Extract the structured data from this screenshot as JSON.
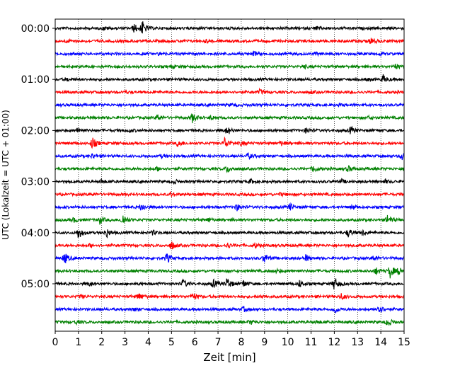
{
  "chart_data": {
    "type": "line",
    "title": "",
    "xlabel": "Zeit  [min]",
    "ylabel": "UTC (Lokalzeit = UTC + 01:00)",
    "xlim": [
      0,
      15
    ],
    "x_ticks": [
      "0",
      "1",
      "2",
      "3",
      "4",
      "5",
      "6",
      "7",
      "8",
      "9",
      "10",
      "11",
      "12",
      "13",
      "14",
      "15"
    ],
    "y_ticks": [
      "00:00",
      "01:00",
      "02:00",
      "03:00",
      "04:00",
      "05:00"
    ],
    "y_tick_rows": [
      0,
      4,
      8,
      12,
      16,
      20
    ],
    "grid": "vertical dotted lines at each minute",
    "colors": [
      "#000000",
      "#ff0000",
      "#0000ff",
      "#008000"
    ],
    "rows_per_hour": 4,
    "minutes_per_row": 15,
    "series": [
      {
        "start": "00:00",
        "events": [
          [
            3.75,
            1.0
          ],
          [
            3.4,
            0.6
          ],
          [
            2.1,
            0.2
          ],
          [
            11.2,
            0.2
          ]
        ]
      },
      {
        "start": "00:15",
        "events": [
          [
            13.6,
            0.5
          ],
          [
            0.5,
            0.15
          ],
          [
            6.5,
            0.15
          ]
        ]
      },
      {
        "start": "00:30",
        "events": [
          [
            8.5,
            0.35
          ],
          [
            11.2,
            0.2
          ],
          [
            14.0,
            0.2
          ],
          [
            4.5,
            0.15
          ]
        ]
      },
      {
        "start": "00:45",
        "events": [
          [
            14.6,
            0.4
          ],
          [
            10.7,
            0.2
          ],
          [
            5.0,
            0.15
          ]
        ]
      },
      {
        "start": "01:00",
        "events": [
          [
            14.1,
            0.6
          ],
          [
            13.4,
            0.2
          ],
          [
            0.5,
            0.25
          ]
        ]
      },
      {
        "start": "01:15",
        "events": [
          [
            8.8,
            0.35
          ],
          [
            3.0,
            0.15
          ],
          [
            11.0,
            0.15
          ]
        ]
      },
      {
        "start": "01:30",
        "events": [
          [
            7.6,
            0.15
          ],
          [
            12.2,
            0.15
          ]
        ]
      },
      {
        "start": "01:45",
        "events": [
          [
            5.9,
            0.7
          ],
          [
            4.4,
            0.5
          ],
          [
            6.7,
            0.25
          ],
          [
            13.5,
            0.2
          ]
        ]
      },
      {
        "start": "02:00",
        "events": [
          [
            7.4,
            0.6
          ],
          [
            1.0,
            0.4
          ],
          [
            12.7,
            0.5
          ],
          [
            10.8,
            0.4
          ],
          [
            3.2,
            0.2
          ]
        ]
      },
      {
        "start": "02:15",
        "events": [
          [
            1.6,
            0.8
          ],
          [
            5.3,
            0.5
          ],
          [
            7.3,
            0.9
          ],
          [
            8.0,
            0.3
          ],
          [
            9.7,
            0.3
          ]
        ]
      },
      {
        "start": "02:30",
        "events": [
          [
            14.9,
            0.6
          ],
          [
            8.3,
            0.4
          ],
          [
            1.6,
            0.3
          ],
          [
            4.6,
            0.2
          ]
        ]
      },
      {
        "start": "02:45",
        "events": [
          [
            11.1,
            0.5
          ],
          [
            7.4,
            0.5
          ],
          [
            12.6,
            0.4
          ],
          [
            4.4,
            0.3
          ]
        ]
      },
      {
        "start": "03:00",
        "events": [
          [
            2.0,
            0.3
          ],
          [
            5.1,
            0.3
          ],
          [
            8.4,
            0.3
          ],
          [
            12.3,
            0.3
          ],
          [
            14.2,
            0.25
          ]
        ]
      },
      {
        "start": "03:15",
        "events": [
          [
            5.0,
            0.3
          ],
          [
            9.7,
            0.2
          ],
          [
            1.6,
            0.15
          ]
        ]
      },
      {
        "start": "03:30",
        "events": [
          [
            3.7,
            0.6
          ],
          [
            7.8,
            0.5
          ],
          [
            10.1,
            0.5
          ],
          [
            12.8,
            0.3
          ]
        ]
      },
      {
        "start": "03:45",
        "events": [
          [
            2.9,
            0.9
          ],
          [
            1.9,
            0.6
          ],
          [
            14.3,
            0.8
          ],
          [
            0.8,
            0.3
          ],
          [
            6.6,
            0.3
          ]
        ]
      },
      {
        "start": "04:00",
        "events": [
          [
            1.0,
            0.9
          ],
          [
            2.2,
            0.7
          ],
          [
            12.6,
            0.6
          ],
          [
            13.2,
            0.4
          ],
          [
            4.2,
            0.3
          ]
        ]
      },
      {
        "start": "04:15",
        "events": [
          [
            5.0,
            0.6
          ],
          [
            7.4,
            0.4
          ],
          [
            8.6,
            0.3
          ],
          [
            1.5,
            0.2
          ]
        ]
      },
      {
        "start": "04:30",
        "events": [
          [
            0.4,
            0.8
          ],
          [
            4.8,
            0.7
          ],
          [
            9.0,
            0.7
          ],
          [
            10.8,
            0.5
          ],
          [
            13.7,
            0.4
          ]
        ]
      },
      {
        "start": "04:45",
        "events": [
          [
            14.4,
            1.0
          ],
          [
            13.8,
            0.5
          ],
          [
            14.8,
            0.6
          ],
          [
            9.5,
            0.2
          ]
        ]
      },
      {
        "start": "05:00",
        "events": [
          [
            12.0,
            1.0
          ],
          [
            7.4,
            0.9
          ],
          [
            5.5,
            0.6
          ],
          [
            6.8,
            0.6
          ],
          [
            8.1,
            0.5
          ],
          [
            10.5,
            0.5
          ],
          [
            1.5,
            0.3
          ]
        ]
      },
      {
        "start": "05:15",
        "events": [
          [
            3.6,
            0.5
          ],
          [
            5.9,
            0.6
          ],
          [
            12.3,
            0.4
          ],
          [
            1.1,
            0.2
          ],
          [
            8.9,
            0.2
          ]
        ]
      },
      {
        "start": "05:30",
        "events": [
          [
            12.0,
            0.6
          ],
          [
            13.9,
            0.8
          ],
          [
            8.1,
            0.3
          ],
          [
            3.4,
            0.2
          ]
        ]
      },
      {
        "start": "05:45",
        "events": [
          [
            14.3,
            0.6
          ],
          [
            8.4,
            0.3
          ],
          [
            0.9,
            0.2
          ],
          [
            11.3,
            0.2
          ]
        ]
      }
    ]
  }
}
